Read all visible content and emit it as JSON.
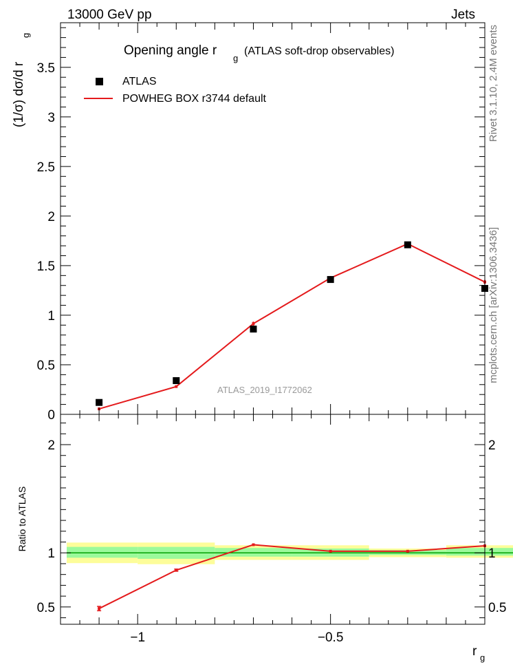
{
  "header": {
    "left": "13000 GeV pp",
    "right": "Jets"
  },
  "side_labels": {
    "rivet": "Rivet 3.1.10, 2.4M events",
    "mcplots": "mcplots.cern.ch [arXiv:1306.3436]"
  },
  "chart_data": [
    {
      "type": "scatter",
      "title": "Opening angle r",
      "title_sub": "g",
      "title_suffix": "(ATLAS soft-drop observables)",
      "ylabel": "(1/σ) dσ/d r",
      "ylabel_sub": "g",
      "watermark": "ATLAS_2019_I1772062",
      "xlim": [
        -1.2,
        -0.1
      ],
      "ylim": [
        0,
        3.95
      ],
      "yticks": [
        0.5,
        1,
        1.5,
        2,
        2.5,
        3,
        3.5
      ],
      "ytick_labels": [
        "0.5",
        "1",
        "1.5",
        "2",
        "2.5",
        "3",
        "3.5"
      ],
      "ytick_zero_label": "0",
      "legend": {
        "placement": "top-left",
        "data_label": "ATLAS",
        "mc_label": "POWHEG BOX r3744 default"
      },
      "series": [
        {
          "name": "ATLAS",
          "style": "marker",
          "color": "#000000",
          "x": [
            -1.1,
            -0.9,
            -0.7,
            -0.5,
            -0.3,
            -0.1
          ],
          "y": [
            0.12,
            0.34,
            0.86,
            1.36,
            1.71,
            1.27
          ]
        },
        {
          "name": "POWHEG BOX r3744 default",
          "style": "line",
          "color": "#e41a1c",
          "x": [
            -1.1,
            -0.9,
            -0.7,
            -0.5,
            -0.3,
            -0.1
          ],
          "y": [
            0.055,
            0.28,
            0.915,
            1.375,
            1.72,
            1.335
          ],
          "yerr": [
            0.005,
            0.01,
            0.02,
            0.02,
            0.02,
            0.02
          ]
        }
      ]
    },
    {
      "type": "line",
      "ylabel": "Ratio to ATLAS",
      "xlabel": "r",
      "xlabel_sub": "g",
      "xlim": [
        -1.2,
        -0.1
      ],
      "ylim": [
        0.34,
        2.28
      ],
      "xticks": [
        -1,
        -0.5
      ],
      "xtick_labels": [
        "−1",
        "−0.5"
      ],
      "yticks": [
        0.5,
        1,
        2
      ],
      "ytick_labels": [
        "0.5",
        "1",
        "2"
      ],
      "bands": {
        "x_edges": [
          -1.2,
          -1.0,
          -0.8,
          -0.6,
          -0.4,
          -0.2,
          -0.02
        ],
        "inner_lo": [
          0.955,
          0.945,
          0.965,
          0.965,
          0.98,
          0.975,
          0.975
        ],
        "inner_hi": [
          1.055,
          1.055,
          1.045,
          1.04,
          1.025,
          1.045,
          1.035
        ],
        "outer_lo": [
          0.905,
          0.895,
          0.935,
          0.935,
          0.96,
          0.955,
          0.96
        ],
        "outer_hi": [
          1.095,
          1.095,
          1.07,
          1.07,
          1.04,
          1.07,
          1.055
        ],
        "inner_color": "#9bfa9b",
        "outer_color": "#fdfd9a",
        "line_color": "#00a000"
      },
      "series": [
        {
          "name": "POWHEG BOX r3744 default",
          "color": "#e41a1c",
          "x": [
            -1.1,
            -0.9,
            -0.7,
            -0.5,
            -0.3,
            -0.1
          ],
          "y": [
            0.485,
            0.84,
            1.075,
            1.015,
            1.015,
            1.065
          ],
          "yerr": [
            0.02,
            0.01,
            0.005,
            0.005,
            0.005,
            0.005
          ]
        }
      ]
    }
  ]
}
